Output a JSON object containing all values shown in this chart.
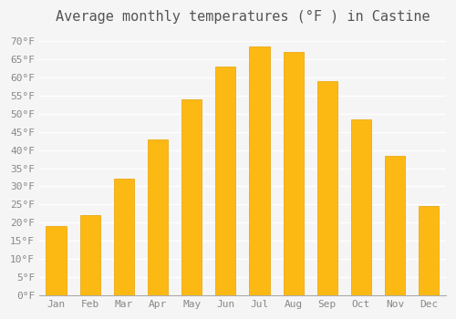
{
  "title": "Average monthly temperatures (°F ) in Castine",
  "months": [
    "Jan",
    "Feb",
    "Mar",
    "Apr",
    "May",
    "Jun",
    "Jul",
    "Aug",
    "Sep",
    "Oct",
    "Nov",
    "Dec"
  ],
  "values": [
    19,
    22,
    32,
    43,
    54,
    63,
    68.5,
    67,
    59,
    48.5,
    38.5,
    24.5
  ],
  "bar_color": "#FDB913",
  "bar_edge_color": "#E8A000",
  "background_color": "#F5F5F5",
  "grid_color": "#FFFFFF",
  "tick_color": "#888888",
  "title_color": "#555555",
  "ylim": [
    0,
    72
  ],
  "yticks": [
    0,
    5,
    10,
    15,
    20,
    25,
    30,
    35,
    40,
    45,
    50,
    55,
    60,
    65,
    70
  ],
  "ylabel_suffix": "°F",
  "title_fontsize": 11,
  "tick_fontsize": 8
}
